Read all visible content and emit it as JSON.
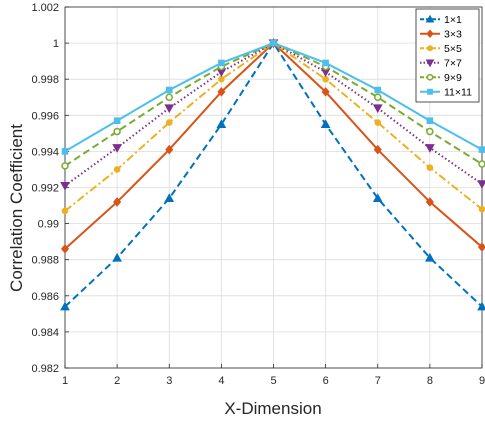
{
  "chart_data": {
    "type": "line",
    "xlabel": "X-Dimension",
    "ylabel": "Correlation Coefficient",
    "xlim": [
      1,
      9
    ],
    "ylim": [
      0.982,
      1.002
    ],
    "x": [
      1,
      2,
      3,
      4,
      5,
      6,
      7,
      8,
      9
    ],
    "x_ticks": [
      "1",
      "2",
      "3",
      "4",
      "5",
      "6",
      "7",
      "8",
      "9"
    ],
    "y_ticks": [
      {
        "value": 0.982,
        "label": "0.982"
      },
      {
        "value": 0.984,
        "label": "0.984"
      },
      {
        "value": 0.986,
        "label": "0.986"
      },
      {
        "value": 0.988,
        "label": "0.988"
      },
      {
        "value": 0.99,
        "label": "0.99"
      },
      {
        "value": 0.992,
        "label": "0.992"
      },
      {
        "value": 0.994,
        "label": "0.994"
      },
      {
        "value": 0.996,
        "label": "0.996"
      },
      {
        "value": 0.998,
        "label": "0.998"
      },
      {
        "value": 1.0,
        "label": "1"
      },
      {
        "value": 1.002,
        "label": "1.002"
      }
    ],
    "grid": true,
    "legend_position": "top-right",
    "series": [
      {
        "name": "1×1",
        "color": "#0072BD",
        "marker": "triangle-up",
        "dash": "dashed",
        "values": [
          0.9854,
          0.9881,
          0.9914,
          0.9955,
          1.0,
          0.9955,
          0.9914,
          0.9881,
          0.9854
        ]
      },
      {
        "name": "3×3",
        "color": "#D95319",
        "marker": "diamond",
        "dash": "solid",
        "values": [
          0.9886,
          0.9912,
          0.9941,
          0.9973,
          1.0,
          0.9973,
          0.9941,
          0.9912,
          0.9887
        ]
      },
      {
        "name": "5×5",
        "color": "#EDB120",
        "marker": "circle-filled",
        "dash": "dashdot",
        "values": [
          0.9907,
          0.993,
          0.9956,
          0.998,
          1.0,
          0.998,
          0.9956,
          0.9931,
          0.9908
        ]
      },
      {
        "name": "7×7",
        "color": "#7E2F8E",
        "marker": "triangle-down",
        "dash": "dotted",
        "values": [
          0.9921,
          0.9942,
          0.9964,
          0.9984,
          1.0,
          0.9984,
          0.9964,
          0.9942,
          0.9922
        ]
      },
      {
        "name": "9×9",
        "color": "#77AC30",
        "marker": "circle-open",
        "dash": "dashed",
        "values": [
          0.9932,
          0.9951,
          0.997,
          0.9987,
          1.0,
          0.9987,
          0.997,
          0.9951,
          0.9933
        ]
      },
      {
        "name": "11×11",
        "color": "#4DBEEE",
        "marker": "square",
        "dash": "solid",
        "values": [
          0.994,
          0.9957,
          0.9974,
          0.9989,
          1.0,
          0.9989,
          0.9974,
          0.9957,
          0.9941
        ]
      }
    ]
  }
}
